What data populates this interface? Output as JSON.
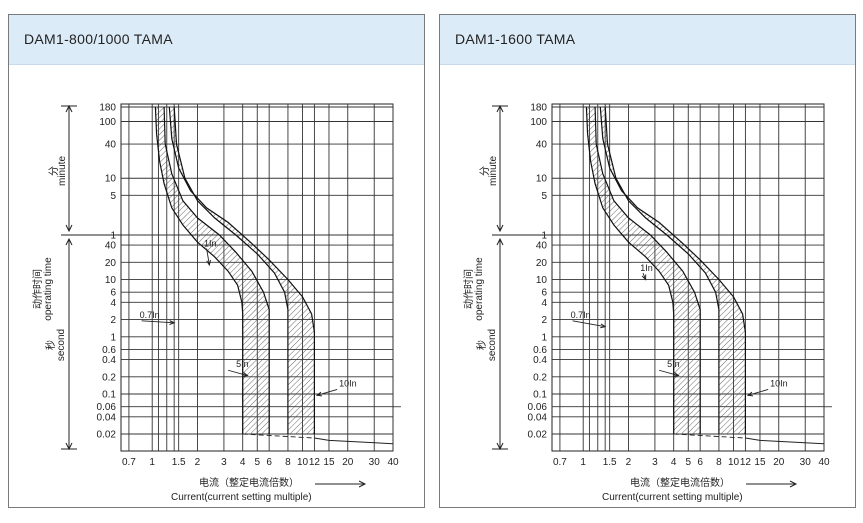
{
  "panels": [
    {
      "title": "DAM1-800/1000 TAMA",
      "curves": {
        "band1": {
          "min_left": 1.05,
          "min_right": 1.3,
          "max_left": 1.3,
          "max_right": 1.6
        },
        "band5": {
          "left": 4.0,
          "right": 6.0
        },
        "band10": {
          "left": 8.0,
          "right": 12.0
        }
      },
      "annotations": [
        {
          "label": "1In",
          "at": [
            2.4,
            18
          ],
          "text": [
            2.3,
            35
          ]
        },
        {
          "label": "0.7In",
          "at": [
            1.4,
            1.75
          ],
          "text": [
            0.85,
            1.9
          ]
        },
        {
          "label": "5In",
          "at": [
            4.3,
            0.21
          ],
          "text": [
            3.2,
            0.26
          ]
        },
        {
          "label": "10In",
          "at": [
            12.5,
            0.095
          ],
          "text": [
            17,
            0.12
          ]
        }
      ]
    },
    {
      "title": "DAM1-1600 TAMA",
      "curves": {
        "band1": {
          "min_left": 1.05,
          "min_right": 1.3,
          "max_left": 1.3,
          "max_right": 1.6
        },
        "band5": {
          "left": 4.0,
          "right": 6.0
        },
        "band10": {
          "left": 8.0,
          "right": 12.0
        }
      },
      "annotations": [
        {
          "label": "1In",
          "at": [
            2.6,
            10
          ],
          "text": [
            2.5,
            13
          ]
        },
        {
          "label": "0.7In",
          "at": [
            1.4,
            1.5
          ],
          "text": [
            0.85,
            1.9
          ]
        },
        {
          "label": "5In",
          "at": [
            4.3,
            0.21
          ],
          "text": [
            3.2,
            0.26
          ]
        },
        {
          "label": "10In",
          "at": [
            12.5,
            0.095
          ],
          "text": [
            17,
            0.12
          ]
        }
      ]
    }
  ],
  "chart_data": {
    "type": "line",
    "x_ticks": [
      "0.7",
      "1",
      "1.5",
      "2",
      "3",
      "4",
      "5",
      "6",
      "8",
      "10",
      "12",
      "15",
      "20",
      "30",
      "40"
    ],
    "x_values": [
      0.7,
      1,
      1.5,
      2,
      3,
      4,
      5,
      6,
      8,
      10,
      12,
      15,
      20,
      30,
      40
    ],
    "x_grid": [
      1.1,
      1.25,
      1.4
    ],
    "y_minute_ticks": [
      "180",
      "100",
      "40",
      "10",
      "5",
      "1"
    ],
    "y_minute_values": [
      180,
      100,
      40,
      10,
      5,
      1
    ],
    "y_second_ticks": [
      "40",
      "20",
      "10",
      "6",
      "4",
      "2",
      "1",
      "0.6",
      "0.4",
      "0.2",
      "0.1",
      "0.06",
      "0.04",
      "0.02"
    ],
    "y_second_values": [
      40,
      20,
      10,
      6,
      4,
      2,
      1,
      0.6,
      0.4,
      0.2,
      0.1,
      0.06,
      0.04,
      0.02
    ],
    "x_scale": "log",
    "y_scale": "log",
    "grid": true,
    "y_label_minute_cn": "分",
    "y_label_minute_en": "minute",
    "y_label_time_cn": "动作时间",
    "y_label_time_en": "operating time",
    "y_label_second_cn": "秒",
    "y_label_second_en": "second",
    "x_label_cn": "电流（整定电流倍数）",
    "x_label_en": "Current(current setting multiple)"
  }
}
